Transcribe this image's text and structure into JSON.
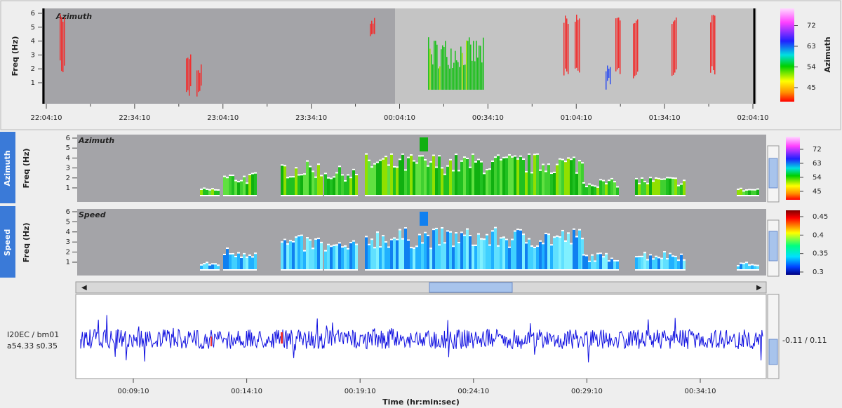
{
  "overview": {
    "title": "Azimuth",
    "ylabel": "Freq (Hz)",
    "yticks": [
      1,
      2,
      3,
      4,
      5,
      6
    ],
    "xticks": [
      "22:04:10",
      "22:34:10",
      "23:04:10",
      "23:34:10",
      "00:04:10",
      "00:34:10",
      "01:04:10",
      "01:34:10",
      "02:04:10"
    ],
    "colorbar": {
      "label": "Azimuth",
      "ticks": [
        45,
        54,
        63,
        72
      ]
    }
  },
  "panels": [
    {
      "tab": "Azimuth",
      "ylabel": "Freq (Hz)",
      "title": "Azimuth",
      "yticks": [
        1,
        2,
        3,
        4,
        5,
        6
      ],
      "colorbar": {
        "ticks": [
          45,
          54,
          63,
          72
        ]
      }
    },
    {
      "tab": "Speed",
      "ylabel": "Freq (Hz)",
      "title": "Speed",
      "yticks": [
        1,
        2,
        3,
        4,
        5,
        6
      ],
      "colorbar": {
        "ticks": [
          0.3,
          0.35,
          0.4,
          0.45
        ]
      }
    }
  ],
  "waveform": {
    "station": "I20EC / bm01",
    "params": "a54.33 s0.35",
    "scale": "-0.11 / 0.11",
    "xticks": [
      "00:09:10",
      "00:14:10",
      "00:19:10",
      "00:24:10",
      "00:29:10",
      "00:34:10"
    ],
    "xlabel": "Time (hr:min:sec)"
  }
}
